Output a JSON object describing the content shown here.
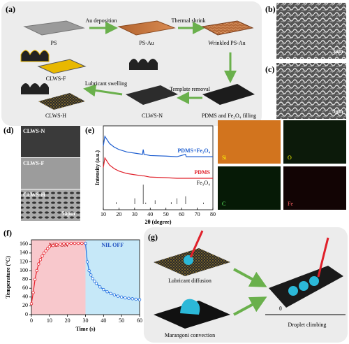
{
  "panel_a": {
    "label": "(a)",
    "steps": {
      "ps": "PS",
      "au_deposition": "Au deposition",
      "ps_au": "PS-Au",
      "thermal_shrink": "Thermal shrink",
      "wrinkled": "Wrinkled PS-Au",
      "filling": "PDMS and Fe₃O₄ filling",
      "template_removal": "Template removal",
      "clws_n": "CLWS-N",
      "lubricant_swelling": "Lubricant swelling",
      "clws_f": "CLWS-F",
      "clws_h": "CLWS-H"
    }
  },
  "panel_b": {
    "label": "(b)",
    "scale": "3μm"
  },
  "panel_c": {
    "label": "(c)",
    "scale": "3μm"
  },
  "panel_d": {
    "label": "(d)",
    "images": [
      "CLWS-N",
      "CLWS-F",
      "CLWS-H"
    ],
    "scale": "50μm"
  },
  "panel_e": {
    "label": "(e)",
    "maps": [
      "Si",
      "O",
      "C",
      "Fe"
    ],
    "chart": {
      "type": "line",
      "x_label": "2θ (degree)",
      "y_label": "Intensity (a.u.)",
      "xlim": [
        10,
        80
      ],
      "xticks": [
        10,
        20,
        30,
        40,
        50,
        60,
        70,
        80
      ],
      "series": [
        {
          "name": "PDMS+Fe₃O₄",
          "color": "#1f5fd0",
          "x": [
            10,
            11,
            12,
            14,
            17,
            20,
            25,
            30,
            35,
            35.5,
            36,
            40,
            50,
            57,
            62.5,
            63,
            70,
            80
          ],
          "values": [
            8.2,
            9.0,
            8.8,
            8.4,
            8.1,
            7.9,
            7.7,
            7.6,
            7.5,
            7.9,
            7.5,
            7.4,
            7.35,
            7.3,
            7.5,
            7.3,
            7.3,
            7.3
          ]
        },
        {
          "name": "PDMS",
          "color": "#e0202a",
          "x": [
            10,
            11,
            12,
            14,
            17,
            20,
            25,
            30,
            35,
            35.5,
            36,
            40,
            50,
            57,
            62.5,
            63,
            70,
            80
          ],
          "values": [
            6.4,
            7.2,
            7.0,
            6.6,
            6.3,
            6.1,
            5.9,
            5.8,
            5.7,
            5.7,
            5.7,
            5.6,
            5.55,
            5.5,
            5.5,
            5.5,
            5.5,
            5.5
          ]
        }
      ],
      "reference": {
        "name": "Fe₃O₄",
        "x": [
          18.3,
          30.1,
          35.5,
          37.1,
          43.1,
          53.4,
          57,
          62.6,
          74
        ],
        "values": [
          10,
          30,
          100,
          8,
          20,
          10,
          30,
          40,
          8
        ]
      }
    }
  },
  "panel_f": {
    "label": "(f)",
    "chart": {
      "type": "line",
      "x_label": "Time (s)",
      "y_label": "Temperature (°C)",
      "xlim": [
        0,
        60
      ],
      "xticks": [
        0,
        10,
        20,
        30,
        40,
        50,
        60
      ],
      "ylim": [
        0,
        170
      ],
      "yticks": [
        0,
        20,
        40,
        60,
        80,
        100,
        120,
        140,
        160
      ],
      "regions": [
        {
          "label": "NIL ON",
          "range": [
            0,
            30
          ],
          "color": "#f8c8cc"
        },
        {
          "label": "NIL OFF",
          "range": [
            30,
            60
          ],
          "color": "#c6e8f8"
        }
      ],
      "series": [
        {
          "color": "#e8202a",
          "x": [
            0,
            1,
            2,
            3,
            4,
            5,
            6,
            7,
            8,
            9,
            10,
            12,
            14,
            16,
            18,
            20,
            22,
            24,
            26,
            28,
            30
          ],
          "values": [
            25,
            50,
            80,
            100,
            115,
            125,
            133,
            140,
            145,
            150,
            154,
            157,
            159,
            160,
            161,
            161,
            162,
            162,
            162,
            162,
            162
          ]
        },
        {
          "color": "#1f6fe0",
          "x": [
            30,
            31,
            32,
            33,
            34,
            35,
            36,
            38,
            40,
            42,
            44,
            46,
            48,
            50,
            52,
            54,
            56,
            58,
            60
          ],
          "values": [
            162,
            120,
            100,
            90,
            82,
            76,
            71,
            63,
            57,
            52,
            48,
            45,
            42,
            40,
            38,
            37,
            36,
            35,
            34
          ]
        }
      ]
    }
  },
  "panel_g": {
    "label": "(g)",
    "lubricant_diffusion": "Lubricant diffusion",
    "marangoni": "Marangoni convection",
    "climbing": "Droplet climbing",
    "angle": "θ"
  }
}
